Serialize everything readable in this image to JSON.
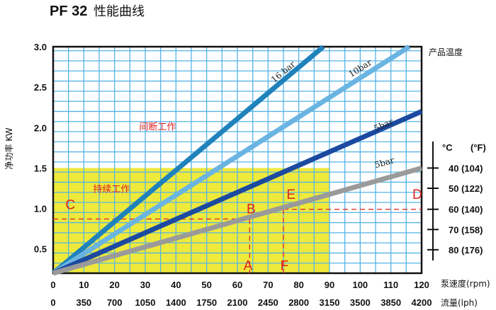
{
  "title_bold": "PF 32",
  "title_rest": "性能曲线",
  "colors": {
    "grid": "#55b4e6",
    "frame": "#111111",
    "yellow_zone": "#eee93a",
    "guide": "#e03030",
    "label_red": "#e02020"
  },
  "chart_data": {
    "type": "line",
    "ylabel": "净功率 KW",
    "x_label_primary": "泵速度(rpm)",
    "x_label_secondary": "流量(lph)",
    "x_ticks_primary": [
      "0",
      "10",
      "20",
      "30",
      "40",
      "50",
      "60",
      "70",
      "80",
      "90",
      "100",
      "110",
      "120"
    ],
    "x_ticks_secondary": [
      "0",
      "350",
      "700",
      "1050",
      "1400",
      "1750",
      "2100",
      "2450",
      "2800",
      "3150",
      "3500",
      "3850",
      "4200"
    ],
    "y_ticks": [
      "0.5",
      "1.0",
      "1.5",
      "2.0",
      "2.5",
      "3.0"
    ],
    "xlim": [
      0,
      120
    ],
    "ylim": [
      0.2,
      3.0
    ],
    "series": [
      {
        "name": "16 bar",
        "color": "#1f82bb",
        "x": [
          0,
          88
        ],
        "y": [
          0.2,
          3.0
        ]
      },
      {
        "name": "10bar",
        "color": "#6ab4e2",
        "x": [
          0,
          116
        ],
        "y": [
          0.2,
          3.0
        ]
      },
      {
        "name": "5bar",
        "color": "#1c4aa0",
        "x": [
          0,
          120
        ],
        "y": [
          0.2,
          2.2
        ]
      },
      {
        "name": "5bar",
        "color": "#9a9a9a",
        "x": [
          0,
          120
        ],
        "y": [
          0.2,
          1.5
        ]
      }
    ],
    "zones": [
      {
        "label": "间断工作",
        "x": [
          0,
          120
        ],
        "y": [
          1.5,
          3.0
        ],
        "color": "#ffffff"
      },
      {
        "label": "持续工作",
        "x": [
          0,
          90
        ],
        "y": [
          0.2,
          1.5
        ],
        "color": "#eee93a"
      }
    ],
    "guides": [
      {
        "from": [
          0,
          0.87
        ],
        "to": [
          64,
          0.87
        ]
      },
      {
        "from": [
          64,
          0.87
        ],
        "to": [
          64,
          0.2
        ]
      },
      {
        "from": [
          75,
          0.99
        ],
        "to": [
          120,
          0.99
        ]
      },
      {
        "from": [
          75,
          0.99
        ],
        "to": [
          75,
          0.2
        ]
      }
    ],
    "points": [
      {
        "label": "A",
        "x": 62,
        "y": 0.24
      },
      {
        "label": "B",
        "x": 63,
        "y": 0.94
      },
      {
        "label": "C",
        "x": 4,
        "y": 0.99
      },
      {
        "label": "D",
        "x": 117,
        "y": 1.12
      },
      {
        "label": "E",
        "x": 76,
        "y": 1.12
      },
      {
        "label": "F",
        "x": 74,
        "y": 0.24
      }
    ],
    "product_temperature": {
      "label": "产品温度",
      "header_c": "°C",
      "header_f": "(°F)",
      "rows": [
        {
          "label": "40 (104)",
          "y": 1.5
        },
        {
          "label": "50 (122)",
          "y": 1.25
        },
        {
          "label": "60 (140)",
          "y": 0.99
        },
        {
          "label": "70 (158)",
          "y": 0.74
        },
        {
          "label": "80 (176)",
          "y": 0.49
        }
      ]
    }
  }
}
